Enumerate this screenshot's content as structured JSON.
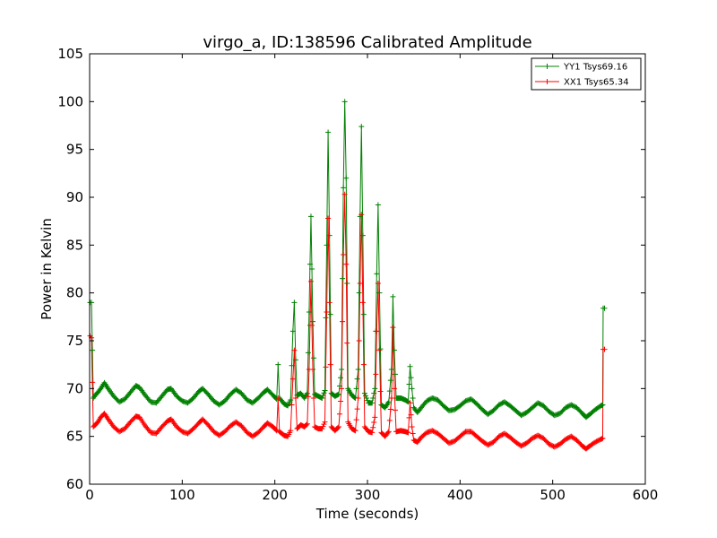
{
  "chart_data": {
    "type": "line",
    "title": "virgo_a, ID:138596 Calibrated Amplitude",
    "xlabel": "Time (seconds)",
    "ylabel": "Power in Kelvin",
    "xlim": [
      0,
      600
    ],
    "ylim": [
      60,
      105
    ],
    "xticks": [
      "0",
      "100",
      "200",
      "300",
      "400",
      "500",
      "600"
    ],
    "yticks": [
      "60",
      "65",
      "70",
      "75",
      "80",
      "85",
      "90",
      "95",
      "100",
      "105"
    ],
    "grid": false,
    "legend_position": "top-right",
    "marker": "plus",
    "series": [
      {
        "name": "YY1 Tsys69.16",
        "color": "#008000",
        "points": [
          [
            0.5,
            79.0
          ],
          [
            2,
            79.0
          ],
          [
            4,
            69.0
          ],
          [
            6,
            69.3
          ],
          [
            9,
            69.6
          ],
          [
            12,
            70.0
          ],
          [
            16,
            70.6
          ],
          [
            20,
            70.0
          ],
          [
            26,
            69.2
          ],
          [
            32,
            68.6
          ],
          [
            38,
            68.9
          ],
          [
            44,
            69.6
          ],
          [
            50,
            70.3
          ],
          [
            54,
            70.1
          ],
          [
            60,
            69.3
          ],
          [
            66,
            68.6
          ],
          [
            72,
            68.5
          ],
          [
            78,
            69.2
          ],
          [
            84,
            69.9
          ],
          [
            88,
            70.0
          ],
          [
            94,
            69.2
          ],
          [
            100,
            68.7
          ],
          [
            106,
            68.5
          ],
          [
            112,
            69.0
          ],
          [
            118,
            69.7
          ],
          [
            122,
            70.0
          ],
          [
            128,
            69.4
          ],
          [
            134,
            68.7
          ],
          [
            140,
            68.3
          ],
          [
            146,
            68.7
          ],
          [
            152,
            69.4
          ],
          [
            158,
            69.9
          ],
          [
            164,
            69.5
          ],
          [
            170,
            68.8
          ],
          [
            176,
            68.5
          ],
          [
            182,
            69.0
          ],
          [
            188,
            69.6
          ],
          [
            192,
            69.9
          ],
          [
            198,
            69.3
          ],
          [
            202,
            68.9
          ],
          [
            203.5,
            72.5
          ],
          [
            205,
            69.0
          ],
          [
            210,
            68.4
          ],
          [
            214,
            68.2
          ],
          [
            217,
            68.8
          ],
          [
            219.5,
            76.0
          ],
          [
            221,
            79.0
          ],
          [
            222.5,
            73.0
          ],
          [
            224,
            69.3
          ],
          [
            228,
            69.5
          ],
          [
            232,
            69.0
          ],
          [
            235,
            69.5
          ],
          [
            237,
            78.0
          ],
          [
            239,
            88.0
          ],
          [
            241,
            77.0
          ],
          [
            243,
            69.4
          ],
          [
            247,
            69.2
          ],
          [
            251,
            69.0
          ],
          [
            254,
            69.8
          ],
          [
            256,
            85.0
          ],
          [
            257.5,
            96.8
          ],
          [
            259,
            86.0
          ],
          [
            261,
            69.5
          ],
          [
            265,
            69.2
          ],
          [
            269,
            69.4
          ],
          [
            272,
            72.0
          ],
          [
            274,
            91.0
          ],
          [
            275.5,
            100.0
          ],
          [
            277,
            92.0
          ],
          [
            279,
            70.0
          ],
          [
            283,
            69.3
          ],
          [
            287,
            69.0
          ],
          [
            290,
            72.0
          ],
          [
            292,
            88.0
          ],
          [
            293.5,
            97.4
          ],
          [
            295,
            86.0
          ],
          [
            297,
            69.5
          ],
          [
            301,
            68.5
          ],
          [
            305,
            68.5
          ],
          [
            308,
            70.0
          ],
          [
            310,
            82.0
          ],
          [
            311.5,
            89.2
          ],
          [
            313,
            80.0
          ],
          [
            315,
            68.3
          ],
          [
            319,
            68.0
          ],
          [
            323,
            68.6
          ],
          [
            326,
            72.0
          ],
          [
            327.5,
            79.6
          ],
          [
            329,
            74.0
          ],
          [
            331,
            69.0
          ],
          [
            336,
            69.0
          ],
          [
            341,
            68.8
          ],
          [
            344,
            68.6
          ],
          [
            346,
            72.3
          ],
          [
            348,
            70.0
          ],
          [
            350,
            68.0
          ],
          [
            354,
            67.5
          ],
          [
            358,
            68.0
          ],
          [
            364,
            68.7
          ],
          [
            370,
            69.0
          ],
          [
            376,
            68.8
          ],
          [
            382,
            68.2
          ],
          [
            388,
            67.7
          ],
          [
            394,
            67.8
          ],
          [
            400,
            68.2
          ],
          [
            406,
            68.7
          ],
          [
            412,
            68.9
          ],
          [
            418,
            68.4
          ],
          [
            424,
            67.8
          ],
          [
            430,
            67.3
          ],
          [
            436,
            67.7
          ],
          [
            442,
            68.3
          ],
          [
            448,
            68.6
          ],
          [
            454,
            68.2
          ],
          [
            460,
            67.7
          ],
          [
            466,
            67.2
          ],
          [
            472,
            67.5
          ],
          [
            478,
            68.0
          ],
          [
            484,
            68.5
          ],
          [
            490,
            68.2
          ],
          [
            496,
            67.6
          ],
          [
            502,
            67.2
          ],
          [
            508,
            67.4
          ],
          [
            514,
            68.0
          ],
          [
            520,
            68.3
          ],
          [
            526,
            68.0
          ],
          [
            532,
            67.4
          ],
          [
            536,
            67.0
          ],
          [
            540,
            67.3
          ],
          [
            546,
            67.8
          ],
          [
            552,
            68.2
          ],
          [
            554,
            68.3
          ],
          [
            554.5,
            78.4
          ],
          [
            556,
            78.4
          ]
        ]
      },
      {
        "name": "XX1 Tsys65.34",
        "color": "#ff0000",
        "points": [
          [
            0.5,
            75.5
          ],
          [
            2,
            75.3
          ],
          [
            4,
            66.0
          ],
          [
            6,
            66.2
          ],
          [
            9,
            66.5
          ],
          [
            12,
            67.0
          ],
          [
            16,
            67.4
          ],
          [
            20,
            66.8
          ],
          [
            26,
            66.0
          ],
          [
            32,
            65.5
          ],
          [
            38,
            65.8
          ],
          [
            44,
            66.5
          ],
          [
            50,
            67.1
          ],
          [
            54,
            67.0
          ],
          [
            60,
            66.1
          ],
          [
            66,
            65.4
          ],
          [
            72,
            65.3
          ],
          [
            78,
            66.0
          ],
          [
            84,
            66.6
          ],
          [
            88,
            66.8
          ],
          [
            94,
            66.0
          ],
          [
            100,
            65.5
          ],
          [
            106,
            65.3
          ],
          [
            112,
            65.8
          ],
          [
            118,
            66.4
          ],
          [
            122,
            66.8
          ],
          [
            128,
            66.2
          ],
          [
            134,
            65.5
          ],
          [
            140,
            65.1
          ],
          [
            146,
            65.5
          ],
          [
            152,
            66.1
          ],
          [
            158,
            66.5
          ],
          [
            164,
            66.1
          ],
          [
            170,
            65.4
          ],
          [
            176,
            65.0
          ],
          [
            182,
            65.4
          ],
          [
            188,
            66.0
          ],
          [
            192,
            66.4
          ],
          [
            198,
            66.0
          ],
          [
            202,
            65.6
          ],
          [
            203.5,
            69.0
          ],
          [
            205,
            65.5
          ],
          [
            210,
            65.1
          ],
          [
            214,
            65.0
          ],
          [
            217,
            65.6
          ],
          [
            219.5,
            71.0
          ],
          [
            221,
            74.0
          ],
          [
            222.5,
            69.0
          ],
          [
            224,
            65.8
          ],
          [
            228,
            66.2
          ],
          [
            232,
            66.0
          ],
          [
            235,
            66.3
          ],
          [
            237,
            72.0
          ],
          [
            239,
            81.2
          ],
          [
            241,
            72.0
          ],
          [
            243,
            66.0
          ],
          [
            247,
            65.8
          ],
          [
            251,
            65.8
          ],
          [
            254,
            66.5
          ],
          [
            256,
            78.0
          ],
          [
            257.5,
            87.8
          ],
          [
            259,
            79.0
          ],
          [
            261,
            66.0
          ],
          [
            265,
            65.6
          ],
          [
            269,
            66.0
          ],
          [
            272,
            70.0
          ],
          [
            274,
            84.0
          ],
          [
            275.5,
            90.3
          ],
          [
            277,
            83.0
          ],
          [
            279,
            66.5
          ],
          [
            283,
            65.8
          ],
          [
            287,
            65.6
          ],
          [
            290,
            69.0
          ],
          [
            292,
            81.0
          ],
          [
            293.5,
            88.2
          ],
          [
            295,
            79.0
          ],
          [
            297,
            66.0
          ],
          [
            301,
            65.5
          ],
          [
            305,
            65.4
          ],
          [
            308,
            67.0
          ],
          [
            310,
            76.0
          ],
          [
            311.5,
            81.0
          ],
          [
            313,
            74.0
          ],
          [
            315,
            65.4
          ],
          [
            319,
            65.0
          ],
          [
            323,
            65.5
          ],
          [
            326,
            69.0
          ],
          [
            327.5,
            76.4
          ],
          [
            329,
            70.0
          ],
          [
            331,
            65.5
          ],
          [
            336,
            65.6
          ],
          [
            341,
            65.5
          ],
          [
            344,
            65.4
          ],
          [
            346,
            68.5
          ],
          [
            348,
            66.0
          ],
          [
            350,
            64.6
          ],
          [
            354,
            64.4
          ],
          [
            358,
            64.9
          ],
          [
            364,
            65.4
          ],
          [
            370,
            65.6
          ],
          [
            376,
            65.3
          ],
          [
            382,
            64.8
          ],
          [
            388,
            64.3
          ],
          [
            394,
            64.5
          ],
          [
            400,
            65.0
          ],
          [
            406,
            65.5
          ],
          [
            412,
            65.5
          ],
          [
            418,
            65.0
          ],
          [
            424,
            64.5
          ],
          [
            430,
            64.1
          ],
          [
            436,
            64.4
          ],
          [
            442,
            65.0
          ],
          [
            448,
            65.3
          ],
          [
            454,
            64.9
          ],
          [
            460,
            64.4
          ],
          [
            466,
            64.0
          ],
          [
            472,
            64.3
          ],
          [
            478,
            64.8
          ],
          [
            484,
            65.1
          ],
          [
            490,
            64.8
          ],
          [
            496,
            64.2
          ],
          [
            502,
            63.9
          ],
          [
            508,
            64.2
          ],
          [
            514,
            64.7
          ],
          [
            520,
            65.0
          ],
          [
            526,
            64.6
          ],
          [
            532,
            64.0
          ],
          [
            536,
            63.7
          ],
          [
            540,
            64.0
          ],
          [
            546,
            64.4
          ],
          [
            552,
            64.7
          ],
          [
            554,
            64.8
          ],
          [
            554.5,
            74.1
          ],
          [
            556,
            74.1
          ]
        ]
      }
    ]
  }
}
